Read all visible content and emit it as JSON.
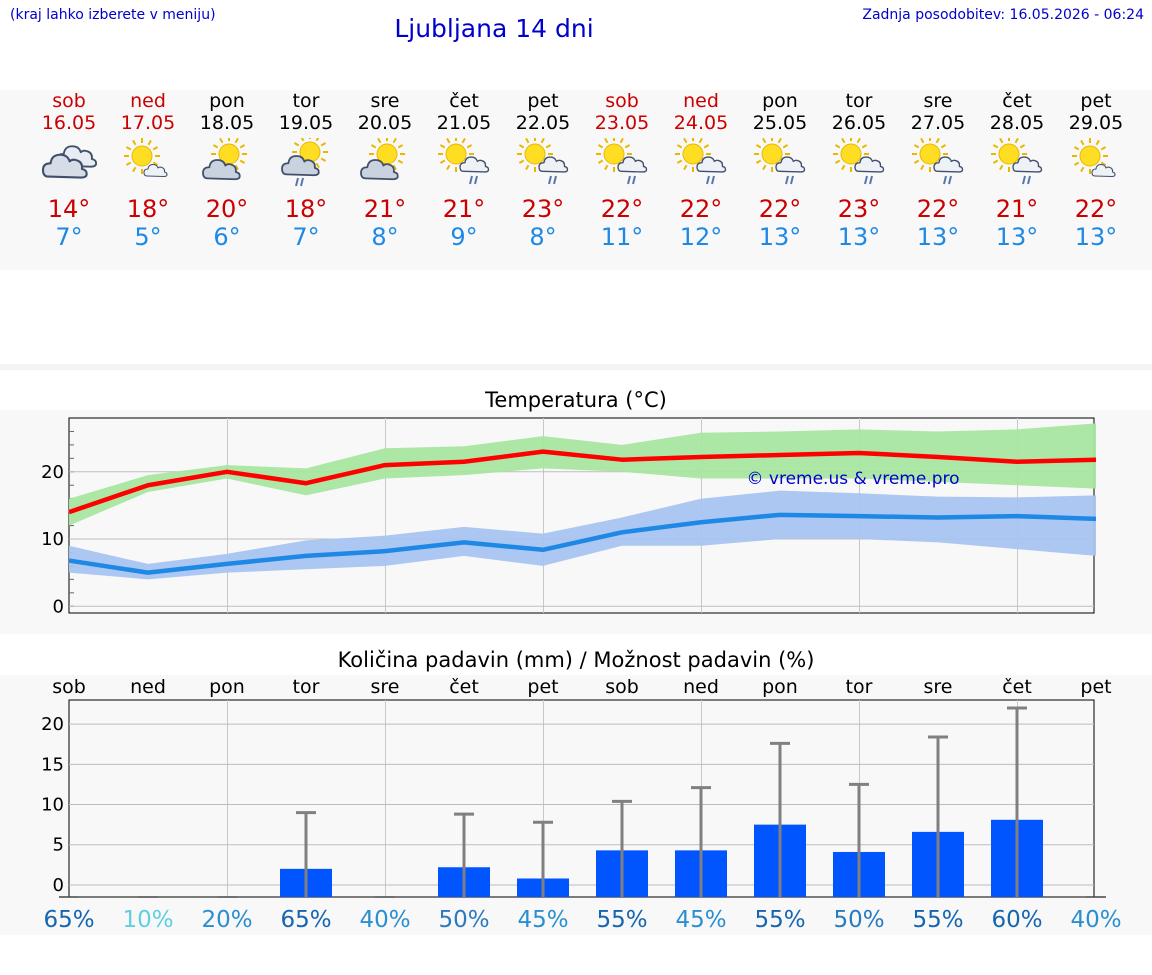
{
  "header": {
    "note": "(kraj lahko izberete v meniju)",
    "title": "Ljubljana 14 dni",
    "updated": "Zadnja posodobitev: 16.05.2026 - 06:24"
  },
  "days": [
    {
      "name": "sob",
      "date": "16.05",
      "weekend": true,
      "icon": "cloudy-icon",
      "tmax": "14°",
      "tmin": "7°"
    },
    {
      "name": "ned",
      "date": "17.05",
      "weekend": true,
      "icon": "sun-small-cloud-icon",
      "tmax": "18°",
      "tmin": "5°"
    },
    {
      "name": "pon",
      "date": "18.05",
      "weekend": false,
      "icon": "sun-cloud-icon",
      "tmax": "20°",
      "tmin": "6°"
    },
    {
      "name": "tor",
      "date": "19.05",
      "weekend": false,
      "icon": "sun-cloud-rain-icon",
      "tmax": "18°",
      "tmin": "7°"
    },
    {
      "name": "sre",
      "date": "20.05",
      "weekend": false,
      "icon": "sun-cloud-icon",
      "tmax": "21°",
      "tmin": "8°"
    },
    {
      "name": "čet",
      "date": "21.05",
      "weekend": false,
      "icon": "sun-rain-icon",
      "tmax": "21°",
      "tmin": "9°"
    },
    {
      "name": "pet",
      "date": "22.05",
      "weekend": false,
      "icon": "sun-rain-icon",
      "tmax": "23°",
      "tmin": "8°"
    },
    {
      "name": "sob",
      "date": "23.05",
      "weekend": true,
      "icon": "sun-rain-icon",
      "tmax": "22°",
      "tmin": "11°"
    },
    {
      "name": "ned",
      "date": "24.05",
      "weekend": true,
      "icon": "sun-rain-icon",
      "tmax": "22°",
      "tmin": "12°"
    },
    {
      "name": "pon",
      "date": "25.05",
      "weekend": false,
      "icon": "sun-rain-icon",
      "tmax": "22°",
      "tmin": "13°"
    },
    {
      "name": "tor",
      "date": "26.05",
      "weekend": false,
      "icon": "sun-rain-icon",
      "tmax": "23°",
      "tmin": "13°"
    },
    {
      "name": "sre",
      "date": "27.05",
      "weekend": false,
      "icon": "sun-rain-icon",
      "tmax": "22°",
      "tmin": "13°"
    },
    {
      "name": "čet",
      "date": "28.05",
      "weekend": false,
      "icon": "sun-rain-icon",
      "tmax": "21°",
      "tmin": "13°"
    },
    {
      "name": "pet",
      "date": "29.05",
      "weekend": false,
      "icon": "sun-small-cloud-icon",
      "tmax": "22°",
      "tmin": "13°"
    }
  ],
  "colors": {
    "weekend": "#cc0000",
    "weekday": "#000000",
    "tmax_line": "#ff0000",
    "tmax_band": "#a8e6a0",
    "tmin_line": "#1e88e5",
    "tmin_band": "#a8c4f0",
    "bar": "#0055ff",
    "error_bar": "#808080",
    "title": "#0000cc"
  },
  "chart_data": [
    {
      "type": "line",
      "title": "Temperatura (°C)",
      "ylim": [
        -1,
        28
      ],
      "yticks": [
        0,
        10,
        20
      ],
      "grid": true,
      "watermark": "© vreme.us & vreme.pro",
      "series": [
        {
          "values": [
            14,
            18,
            20,
            18.3,
            21,
            21.5,
            23,
            21.8,
            22.2,
            22.5,
            22.8,
            22.2,
            21.5,
            21.8
          ],
          "band_low": [
            12,
            17,
            19,
            16.5,
            19,
            19.5,
            20.5,
            20,
            19,
            19,
            19,
            18.5,
            18,
            17.5
          ],
          "band_high": [
            16,
            19.5,
            21,
            20.5,
            23.5,
            23.8,
            25.3,
            24,
            25.8,
            26,
            26.3,
            26,
            26.3,
            27.2
          ]
        },
        {
          "values": [
            6.8,
            5,
            6.3,
            7.5,
            8.2,
            9.5,
            8.4,
            11,
            12.5,
            13.6,
            13.4,
            13.2,
            13.4,
            13
          ],
          "band_low": [
            5,
            4,
            5,
            5.5,
            6,
            7.5,
            6,
            9,
            9,
            10,
            10,
            9.5,
            8.5,
            7.5
          ],
          "band_high": [
            9,
            6.3,
            7.8,
            9.8,
            10.5,
            11.8,
            10.8,
            13.2,
            16,
            17.2,
            16.8,
            16.3,
            16.2,
            16.5
          ]
        }
      ]
    },
    {
      "type": "bar",
      "title": "Količina padavin (mm) / Možnost padavin (%)",
      "categories": [
        "sob",
        "ned",
        "pon",
        "tor",
        "sre",
        "čet",
        "pet",
        "sob",
        "ned",
        "pon",
        "tor",
        "sre",
        "čet",
        "pet"
      ],
      "ylim": [
        -1.5,
        23
      ],
      "yticks": [
        0,
        5,
        10,
        15,
        20
      ],
      "values": [
        0,
        0,
        0,
        2,
        0,
        2.2,
        0.8,
        4.3,
        4.3,
        7.5,
        4.1,
        6.6,
        8.1,
        0
      ],
      "error_high": [
        0,
        0,
        0,
        9,
        0,
        8.8,
        7.8,
        10.4,
        12.1,
        17.6,
        12.5,
        18.4,
        22,
        0
      ],
      "chance": [
        "65%",
        "10%",
        "20%",
        "65%",
        "40%",
        "50%",
        "45%",
        "55%",
        "45%",
        "55%",
        "50%",
        "55%",
        "60%",
        "40%"
      ],
      "chance_colors": [
        "#1565b0",
        "#60d0e0",
        "#2a8fd0",
        "#1565b0",
        "#2a8fd0",
        "#2a7ac0",
        "#2a8fd0",
        "#1565b0",
        "#2a8fd0",
        "#1565b0",
        "#2a7ac0",
        "#1565b0",
        "#1565b0",
        "#2a8fd0"
      ]
    }
  ]
}
